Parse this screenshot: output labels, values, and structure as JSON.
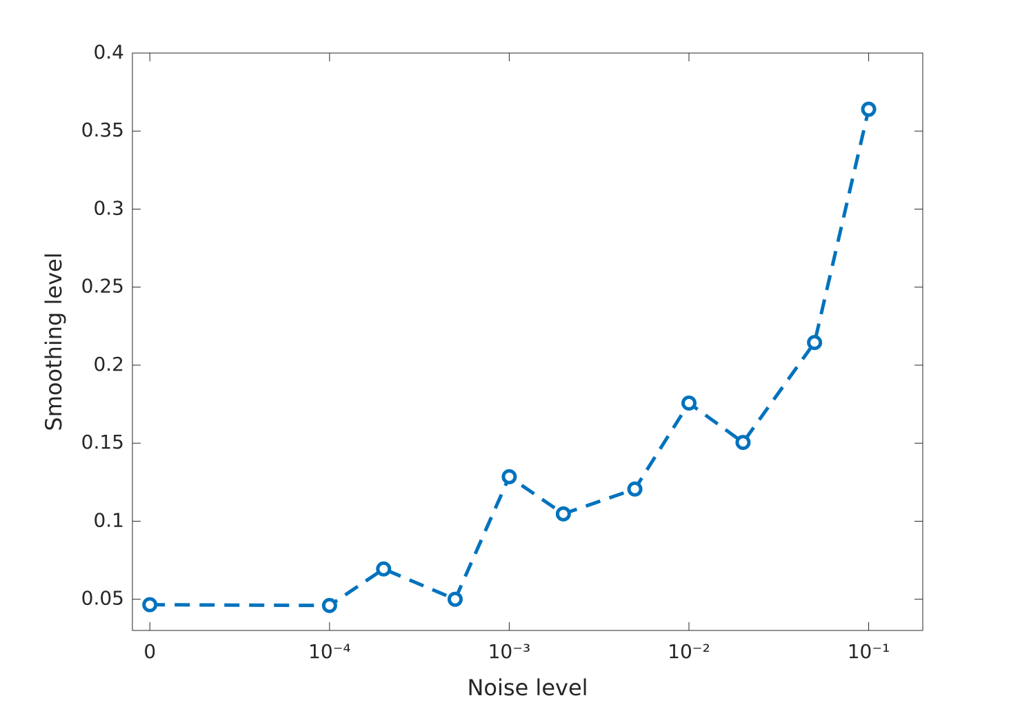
{
  "chart_data": {
    "type": "line",
    "xlabel": "Noise level",
    "ylabel": "Smoothing level",
    "x": [
      1e-05,
      0.0001,
      0.0002,
      0.0005,
      0.001,
      0.002,
      0.005,
      0.01,
      0.02,
      0.05,
      0.1
    ],
    "series": [
      {
        "color": "#0072bd",
        "values": [
          0.0465,
          0.046,
          0.0694,
          0.05,
          0.1285,
          0.1047,
          0.1206,
          0.1757,
          0.1505,
          0.2145,
          0.364
        ]
      }
    ],
    "xscale": "log",
    "xlim": [
      8e-06,
      0.2
    ],
    "xticks": [
      {
        "value": 1e-05,
        "label": "0"
      },
      {
        "value": 0.0001,
        "label": "10⁻⁴"
      },
      {
        "value": 0.001,
        "label": "10⁻³"
      },
      {
        "value": 0.01,
        "label": "10⁻²"
      },
      {
        "value": 0.1,
        "label": "10⁻¹"
      }
    ],
    "ylim": [
      0.03,
      0.4
    ],
    "yticks": [
      0.05,
      0.1,
      0.15,
      0.2,
      0.25,
      0.3,
      0.35,
      0.4
    ],
    "grid": false
  }
}
